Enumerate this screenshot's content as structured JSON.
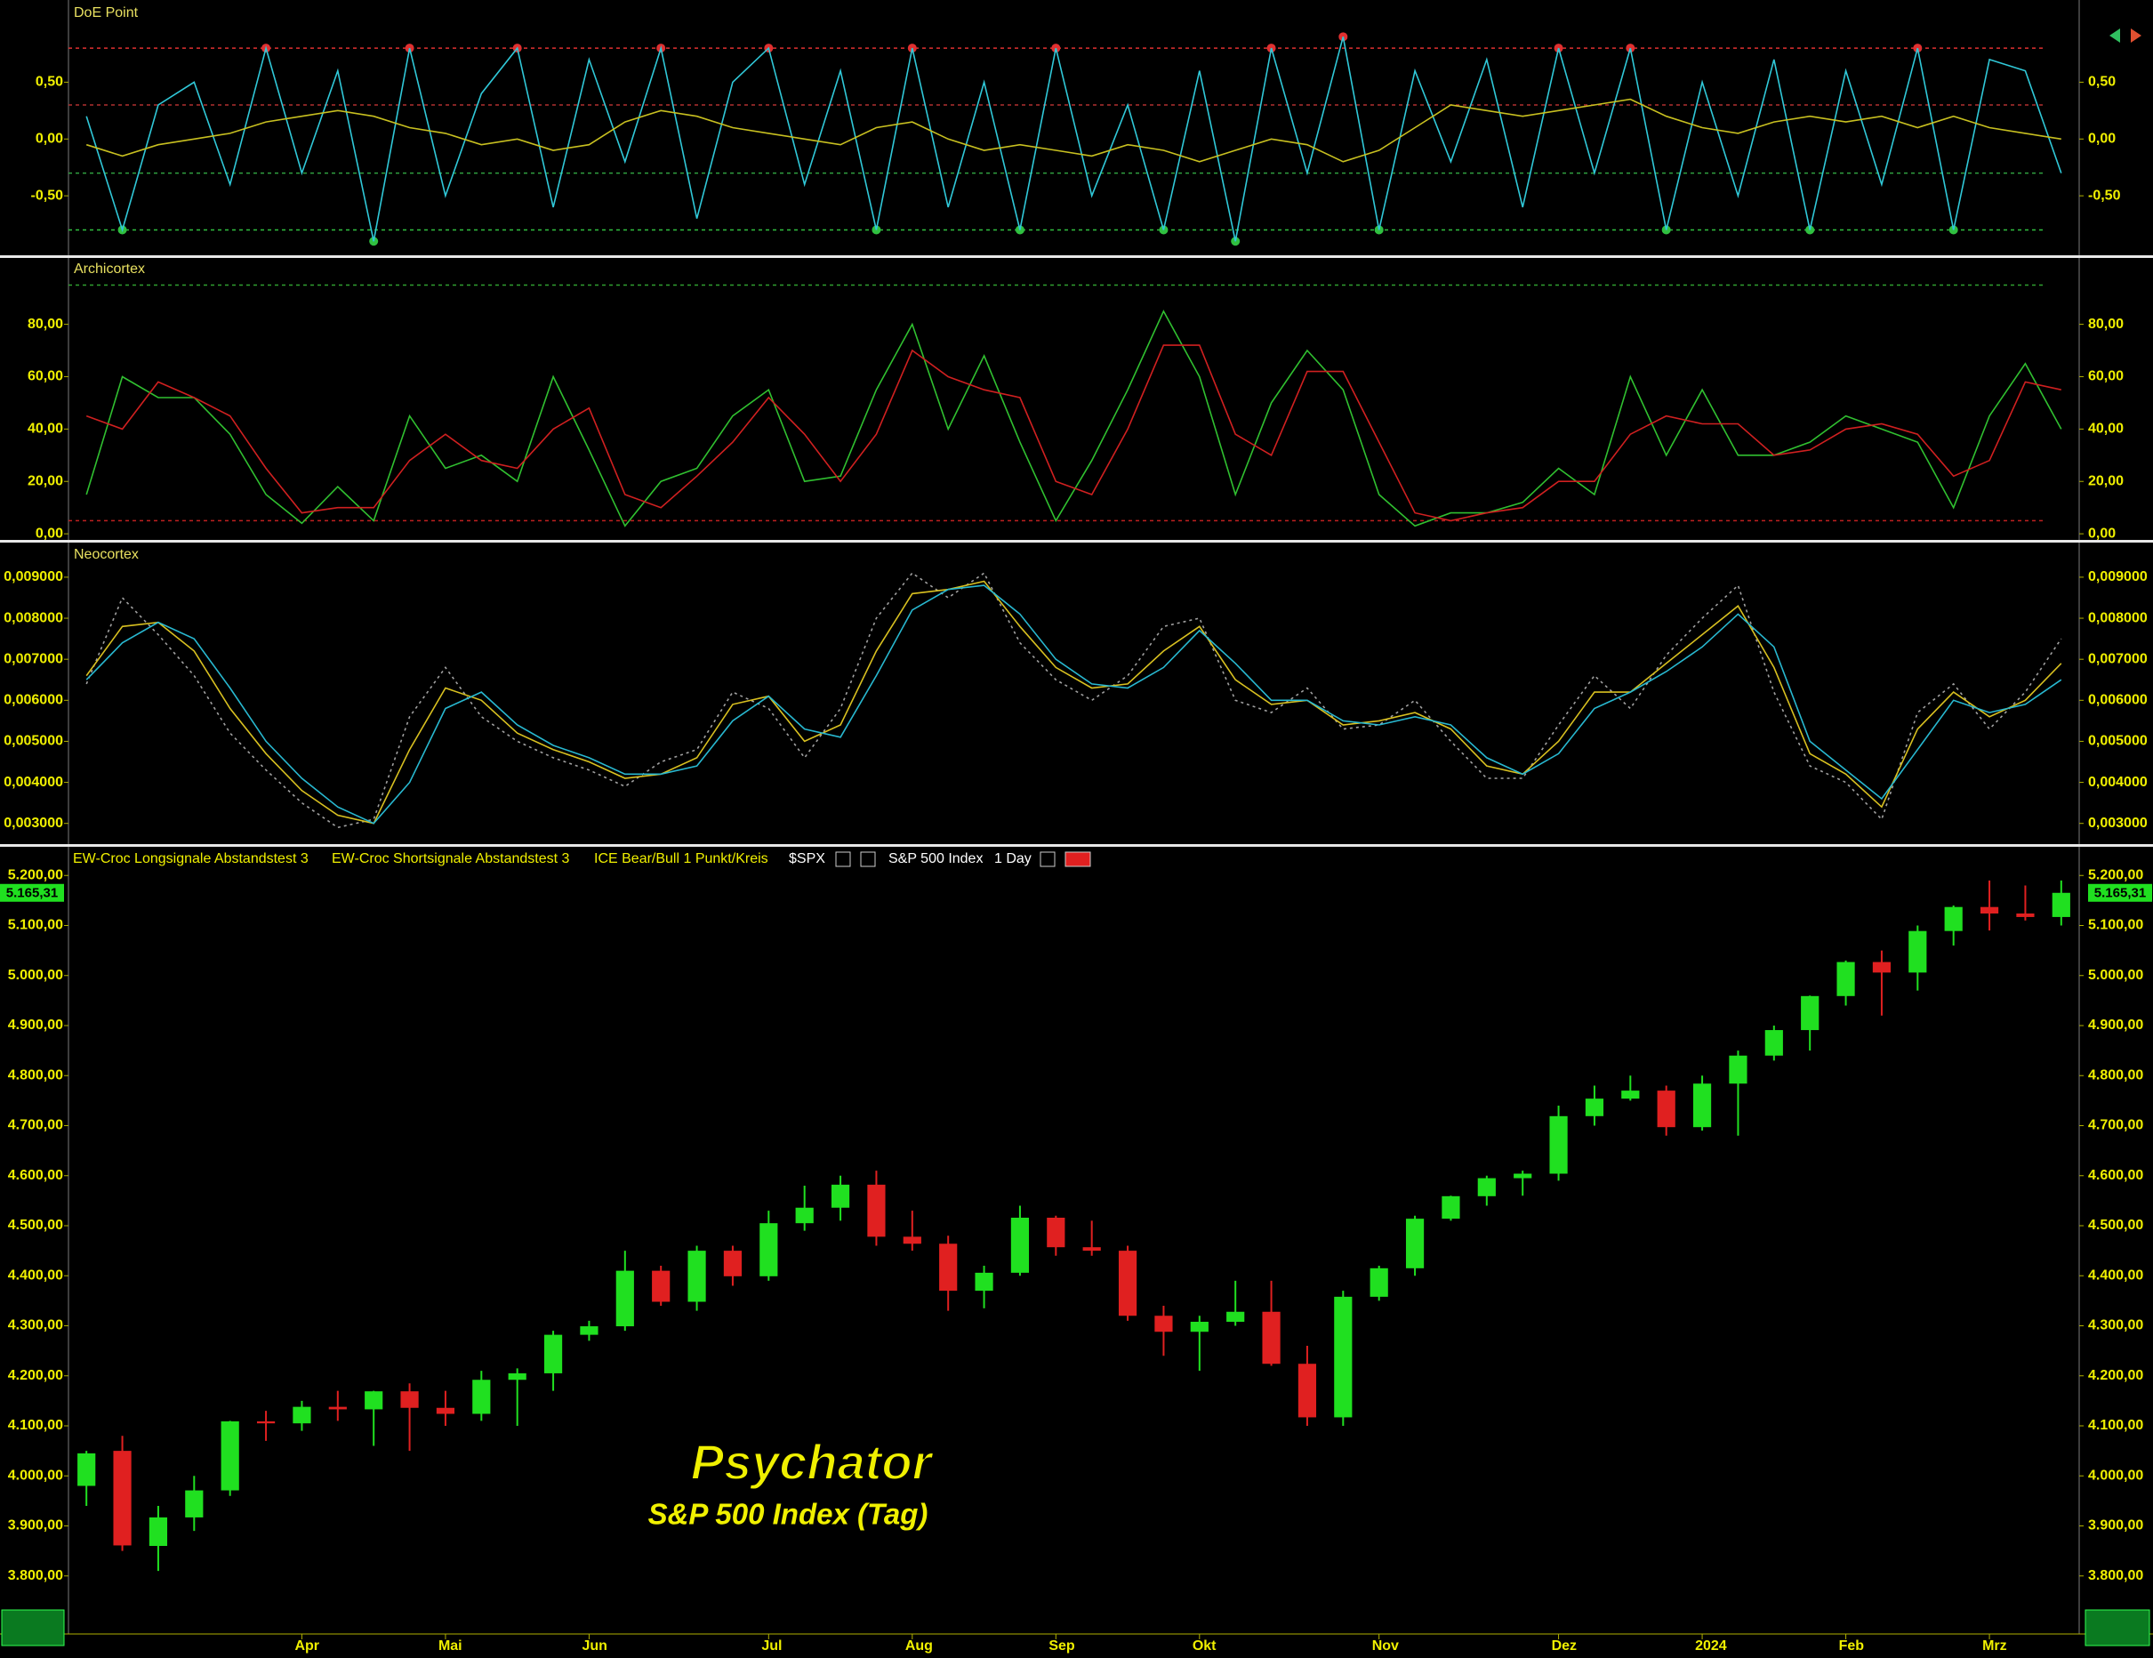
{
  "chart_data": [
    {
      "type": "line",
      "title": "DoE Point",
      "ylim": [
        -1,
        1.2
      ],
      "yticks": [
        {
          "value": -0.5,
          "label": "-0,50"
        },
        {
          "value": 0,
          "label": "0,00"
        },
        {
          "value": 0.5,
          "label": "0,50"
        }
      ],
      "hlines": [
        {
          "value": 0.8,
          "color": "#e03030"
        },
        {
          "value": 0.3,
          "color": "#b03030"
        },
        {
          "value": -0.3,
          "color": "#30a040"
        },
        {
          "value": -0.8,
          "color": "#30c040"
        }
      ],
      "signal_dots": true,
      "series": [
        {
          "name": "DoE",
          "color": "#30c8d8",
          "values": [
            0.2,
            -0.8,
            0.3,
            0.5,
            -0.4,
            0.8,
            -0.3,
            0.6,
            -0.9,
            0.8,
            -0.5,
            0.4,
            0.8,
            -0.6,
            0.7,
            -0.2,
            0.8,
            -0.7,
            0.5,
            0.8,
            -0.4,
            0.6,
            -0.8,
            0.8,
            -0.6,
            0.5,
            -0.8,
            0.8,
            -0.5,
            0.3,
            -0.8,
            0.6,
            -0.9,
            0.8,
            -0.3,
            0.9,
            -0.8,
            0.6,
            -0.2,
            0.7,
            -0.6,
            0.8,
            -0.3,
            0.8,
            -0.8,
            0.5,
            -0.5,
            0.7,
            -0.8,
            0.6,
            -0.4,
            0.8,
            -0.8,
            0.7,
            0.6,
            -0.3
          ]
        },
        {
          "name": "Signal",
          "color": "#c8c020",
          "values": [
            -0.05,
            -0.15,
            -0.05,
            0.0,
            0.05,
            0.15,
            0.2,
            0.25,
            0.2,
            0.1,
            0.05,
            -0.05,
            0.0,
            -0.1,
            -0.05,
            0.15,
            0.25,
            0.2,
            0.1,
            0.05,
            0.0,
            -0.05,
            0.1,
            0.15,
            0.0,
            -0.1,
            -0.05,
            -0.1,
            -0.15,
            -0.05,
            -0.1,
            -0.2,
            -0.1,
            0.0,
            -0.05,
            -0.2,
            -0.1,
            0.1,
            0.3,
            0.25,
            0.2,
            0.25,
            0.3,
            0.35,
            0.2,
            0.1,
            0.05,
            0.15,
            0.2,
            0.15,
            0.2,
            0.1,
            0.2,
            0.1,
            0.05,
            0.0
          ]
        }
      ]
    },
    {
      "type": "line",
      "title": "Archicortex",
      "ylim": [
        -2,
        105
      ],
      "yticks": [
        {
          "value": 0,
          "label": "0,00"
        },
        {
          "value": 20,
          "label": "20,00"
        },
        {
          "value": 40,
          "label": "40,00"
        },
        {
          "value": 60,
          "label": "60,00"
        },
        {
          "value": 80,
          "label": "80,00"
        }
      ],
      "hlines": [
        {
          "value": 95,
          "color": "#30a030"
        },
        {
          "value": 5,
          "color": "#c02020"
        }
      ],
      "series": [
        {
          "name": "Fast",
          "color": "#30c030",
          "values": [
            15,
            60,
            52,
            52,
            38,
            15,
            4,
            18,
            5,
            45,
            25,
            30,
            20,
            60,
            32,
            3,
            20,
            25,
            45,
            55,
            20,
            22,
            55,
            80,
            40,
            68,
            35,
            5,
            28,
            55,
            85,
            60,
            15,
            50,
            70,
            55,
            15,
            3,
            8,
            8,
            12,
            25,
            15,
            60,
            30,
            55,
            30,
            30,
            35,
            45,
            40,
            35,
            10,
            45,
            65,
            40
          ]
        },
        {
          "name": "Slow",
          "color": "#d02020",
          "values": [
            45,
            40,
            58,
            52,
            45,
            25,
            8,
            10,
            10,
            28,
            38,
            28,
            25,
            40,
            48,
            15,
            10,
            22,
            35,
            52,
            38,
            20,
            38,
            70,
            60,
            55,
            52,
            20,
            15,
            40,
            72,
            72,
            38,
            30,
            62,
            62,
            35,
            8,
            5,
            8,
            10,
            20,
            20,
            38,
            45,
            42,
            42,
            30,
            32,
            40,
            42,
            38,
            22,
            28,
            58,
            55
          ]
        }
      ]
    },
    {
      "type": "line",
      "title": "Neocortex",
      "ylim": [
        0.00256,
        0.0098
      ],
      "yticks": [
        {
          "value": 0.003,
          "label": "0,003000"
        },
        {
          "value": 0.004,
          "label": "0,004000"
        },
        {
          "value": 0.005,
          "label": "0,005000"
        },
        {
          "value": 0.006,
          "label": "0,006000"
        },
        {
          "value": 0.007,
          "label": "0,007000"
        },
        {
          "value": 0.008,
          "label": "0,008000"
        },
        {
          "value": 0.009,
          "label": "0,009000"
        }
      ],
      "series": [
        {
          "name": "Raw",
          "color": "#a0a0a0",
          "style": "dotted",
          "values": [
            0.0064,
            0.0085,
            0.0076,
            0.0066,
            0.0052,
            0.0043,
            0.0035,
            0.0029,
            0.0031,
            0.0056,
            0.0068,
            0.0056,
            0.005,
            0.0046,
            0.0043,
            0.0039,
            0.0045,
            0.0048,
            0.0062,
            0.0058,
            0.0046,
            0.0058,
            0.008,
            0.0091,
            0.0085,
            0.0091,
            0.0074,
            0.0065,
            0.006,
            0.0066,
            0.0078,
            0.008,
            0.006,
            0.0057,
            0.0063,
            0.0053,
            0.0054,
            0.006,
            0.005,
            0.0041,
            0.0041,
            0.0054,
            0.0066,
            0.0058,
            0.0071,
            0.008,
            0.0088,
            0.0062,
            0.0044,
            0.004,
            0.0031,
            0.0057,
            0.0064,
            0.0053,
            0.0062,
            0.0075
          ]
        },
        {
          "name": "Fast",
          "color": "#d8c020",
          "values": [
            0.0066,
            0.0078,
            0.0079,
            0.0072,
            0.0058,
            0.0047,
            0.0038,
            0.0032,
            0.003,
            0.0048,
            0.0063,
            0.006,
            0.0052,
            0.0048,
            0.0045,
            0.0041,
            0.0042,
            0.0046,
            0.0059,
            0.0061,
            0.005,
            0.0054,
            0.0072,
            0.0086,
            0.0087,
            0.0089,
            0.0078,
            0.0068,
            0.0063,
            0.0064,
            0.0072,
            0.0078,
            0.0065,
            0.0059,
            0.006,
            0.0054,
            0.0055,
            0.0057,
            0.0053,
            0.0044,
            0.0042,
            0.005,
            0.0062,
            0.0062,
            0.0069,
            0.0076,
            0.0083,
            0.0068,
            0.0047,
            0.0042,
            0.0034,
            0.0053,
            0.0062,
            0.0056,
            0.006,
            0.0069
          ]
        },
        {
          "name": "Slow",
          "color": "#28b8d0",
          "values": [
            0.0065,
            0.0074,
            0.0079,
            0.0075,
            0.0063,
            0.005,
            0.0041,
            0.0034,
            0.003,
            0.004,
            0.0058,
            0.0062,
            0.0054,
            0.0049,
            0.0046,
            0.0042,
            0.0042,
            0.0044,
            0.0055,
            0.0061,
            0.0053,
            0.0051,
            0.0066,
            0.0082,
            0.0087,
            0.0088,
            0.0081,
            0.007,
            0.0064,
            0.0063,
            0.0068,
            0.0077,
            0.0069,
            0.006,
            0.006,
            0.0055,
            0.0054,
            0.0056,
            0.0054,
            0.0046,
            0.0042,
            0.0047,
            0.0058,
            0.0062,
            0.0067,
            0.0073,
            0.0081,
            0.0073,
            0.005,
            0.0043,
            0.0036,
            0.0048,
            0.006,
            0.0057,
            0.0059,
            0.0065
          ]
        }
      ]
    },
    {
      "type": "candlestick",
      "indicators": [
        "EW-Croc Longsignale Abstandstest 3",
        "EW-Croc Shortsignale Abstandstest 3",
        "ICE Bear/Bull 1 Punkt/Kreis"
      ],
      "symbol": "$SPX",
      "name": "S&P 500 Index",
      "interval": "1 Day",
      "watermark": "Psychator",
      "subtitle": "S&P 500 Index (Tag)",
      "up_color": "#20e020",
      "down_color": "#e02020",
      "last_value": {
        "value": 5165.31,
        "label": "5.165,31"
      },
      "ylim": [
        3684,
        5252
      ],
      "yticks": [
        {
          "value": 3800,
          "label": "3.800,00"
        },
        {
          "value": 3900,
          "label": "3.900,00"
        },
        {
          "value": 4000,
          "label": "4.000,00"
        },
        {
          "value": 4100,
          "label": "4.100,00"
        },
        {
          "value": 4200,
          "label": "4.200,00"
        },
        {
          "value": 4300,
          "label": "4.300,00"
        },
        {
          "value": 4400,
          "label": "4.400,00"
        },
        {
          "value": 4500,
          "label": "4.500,00"
        },
        {
          "value": 4600,
          "label": "4.600,00"
        },
        {
          "value": 4700,
          "label": "4.700,00"
        },
        {
          "value": 4800,
          "label": "4.800,00"
        },
        {
          "value": 4900,
          "label": "4.900,00"
        },
        {
          "value": 5000,
          "label": "5.000,00"
        },
        {
          "value": 5100,
          "label": "5.100,00"
        },
        {
          "value": 5200,
          "label": "5.200,00"
        }
      ],
      "categories": [
        null,
        null,
        null,
        null,
        null,
        null,
        "Apr",
        null,
        null,
        null,
        "Mai",
        null,
        null,
        null,
        "Jun",
        null,
        null,
        null,
        null,
        "Jul",
        null,
        null,
        null,
        "Aug",
        null,
        null,
        null,
        "Sep",
        null,
        null,
        null,
        "Okt",
        null,
        null,
        null,
        null,
        "Nov",
        null,
        null,
        null,
        null,
        "Dez",
        null,
        null,
        null,
        "2024",
        null,
        null,
        null,
        "Feb",
        null,
        null,
        null,
        "Mrz",
        null,
        null
      ],
      "open": [
        3980,
        4050,
        3860,
        3917,
        3971,
        4109,
        4105,
        4138,
        4133,
        4169,
        4136,
        4124,
        4192,
        4205,
        4282,
        4299,
        4410,
        4348,
        4450,
        4399,
        4505,
        4536,
        4582,
        4478,
        4464,
        4370,
        4406,
        4516,
        4457,
        4450,
        4320,
        4288,
        4308,
        4328,
        4224,
        4117,
        4358,
        4415,
        4514,
        4559,
        4595,
        4604,
        4719,
        4754,
        4770,
        4697,
        4784,
        4840,
        4891,
        4959,
        5027,
        5006,
        5089,
        5137,
        5124,
        5117
      ],
      "high": [
        4050,
        4080,
        3940,
        4000,
        4110,
        4130,
        4150,
        4170,
        4170,
        4185,
        4170,
        4210,
        4215,
        4290,
        4310,
        4450,
        4420,
        4460,
        4460,
        4530,
        4580,
        4600,
        4610,
        4530,
        4480,
        4420,
        4540,
        4520,
        4510,
        4460,
        4340,
        4320,
        4390,
        4390,
        4260,
        4370,
        4420,
        4520,
        4560,
        4600,
        4610,
        4740,
        4780,
        4800,
        4780,
        4800,
        4850,
        4900,
        4960,
        5030,
        5050,
        5100,
        5140,
        5190,
        5180,
        5190
      ],
      "low": [
        3940,
        3850,
        3810,
        3890,
        3960,
        4070,
        4090,
        4110,
        4060,
        4050,
        4100,
        4110,
        4100,
        4170,
        4270,
        4290,
        4340,
        4330,
        4380,
        4390,
        4490,
        4510,
        4460,
        4450,
        4330,
        4335,
        4400,
        4440,
        4440,
        4310,
        4240,
        4210,
        4300,
        4220,
        4100,
        4100,
        4350,
        4400,
        4510,
        4540,
        4560,
        4590,
        4700,
        4750,
        4680,
        4690,
        4680,
        4830,
        4850,
        4940,
        4920,
        4970,
        5060,
        5090,
        5110,
        5100
      ],
      "close": [
        4045,
        3861,
        3917,
        3971,
        4109,
        4105,
        4138,
        4133,
        4169,
        4136,
        4124,
        4192,
        4205,
        4282,
        4299,
        4410,
        4348,
        4450,
        4399,
        4505,
        4536,
        4582,
        4478,
        4464,
        4370,
        4406,
        4516,
        4457,
        4450,
        4320,
        4288,
        4308,
        4328,
        4224,
        4117,
        4358,
        4415,
        4514,
        4559,
        4595,
        4604,
        4719,
        4754,
        4770,
        4697,
        4784,
        4840,
        4891,
        4959,
        5027,
        5006,
        5089,
        5137,
        5124,
        5117,
        5165.31
      ]
    }
  ]
}
